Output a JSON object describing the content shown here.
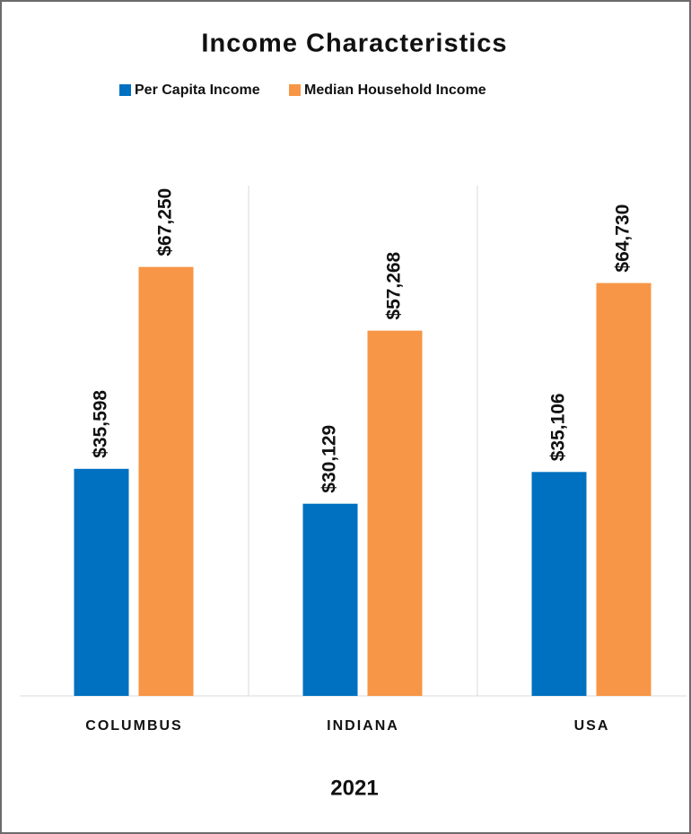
{
  "chart_data": {
    "type": "bar",
    "title": "Income Characteristics",
    "categories": [
      "COLUMBUS",
      "INDIANA",
      "USA"
    ],
    "series": [
      {
        "name": "Per Capita Income",
        "color": "#0070c0",
        "values": [
          35598,
          30129,
          35106
        ],
        "value_labels": [
          "$35,598",
          "$30,129",
          "$35,106"
        ]
      },
      {
        "name": "Median Household Income",
        "color": "#f79646",
        "values": [
          67250,
          57268,
          64730
        ],
        "value_labels": [
          "$67,250",
          "$57,268",
          "$64,730"
        ]
      }
    ],
    "xlabel": "2021",
    "ylim": [
      0,
      80000
    ]
  }
}
